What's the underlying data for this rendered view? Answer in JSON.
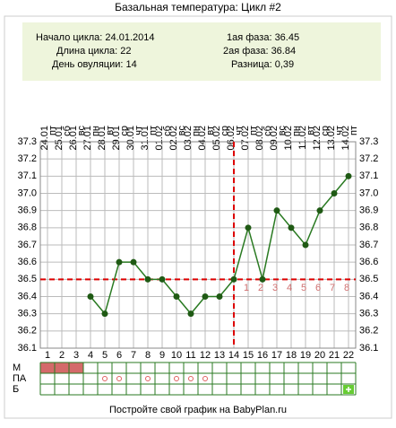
{
  "chart_data": {
    "type": "line",
    "title": "Базальная температура: Цикл #2",
    "info_left": [
      "Начало цикла: 24.01.2014",
      "Длина цикла: 22",
      "День овуляции: 14"
    ],
    "info_right": [
      "1ая фаза: 36.45",
      "2ая фаза: 36.84",
      "Разница: 0,39"
    ],
    "categories": [
      "1",
      "2",
      "3",
      "4",
      "5",
      "6",
      "7",
      "8",
      "9",
      "10",
      "11",
      "12",
      "13",
      "14",
      "15",
      "16",
      "17",
      "18",
      "19",
      "20",
      "21",
      "22"
    ],
    "dates": [
      "24.01",
      "25.01",
      "26.01",
      "27.01",
      "28.01",
      "29.01",
      "30.01",
      "31.01",
      "01.02",
      "02.02",
      "03.02",
      "04.02",
      "05.02",
      "06.02",
      "07.02",
      "08.02",
      "09.02",
      "10.02",
      "11.02",
      "12.02",
      "13.02",
      "14.02"
    ],
    "weekdays": [
      "пт",
      "сб",
      "вс",
      "пн",
      "вт",
      "ср",
      "чт",
      "пт",
      "сб",
      "вс",
      "пн",
      "вт",
      "ср",
      "чт",
      "пт",
      "сб",
      "вс",
      "пн",
      "вт",
      "ср",
      "чт",
      "пт"
    ],
    "series": [
      {
        "color": "#2a7a22",
        "values": [
          null,
          null,
          null,
          36.4,
          36.3,
          36.6,
          36.6,
          36.5,
          36.5,
          36.4,
          36.3,
          36.4,
          36.4,
          36.5,
          36.8,
          36.5,
          36.9,
          36.8,
          36.7,
          36.9,
          37.0,
          37.1
        ]
      }
    ],
    "coverline": 36.5,
    "coverline_color": "#dd0000",
    "ovulation_day": 14,
    "luteal_day_labels": [
      1,
      2,
      3,
      4,
      5,
      6,
      7,
      8
    ],
    "ylim": [
      36.1,
      37.3
    ],
    "yticks": [
      36.1,
      36.2,
      36.3,
      36.4,
      36.5,
      36.6,
      36.7,
      36.8,
      36.9,
      {
        "value": 37.0,
        "label": "37.0"
      },
      37.1,
      37.2,
      37.3
    ],
    "grid": true,
    "rows": [
      {
        "label": "М",
        "days": [
          1,
          2,
          3
        ],
        "color": "#d46a6a"
      },
      {
        "label": "ПА",
        "days": [
          5,
          6,
          8,
          10,
          11,
          12
        ],
        "color": "#e06060"
      },
      {
        "label": "Б",
        "days": [
          22
        ],
        "color": "#66cc33"
      }
    ],
    "footer": "Постройте свой график на BabyPlan.ru"
  }
}
